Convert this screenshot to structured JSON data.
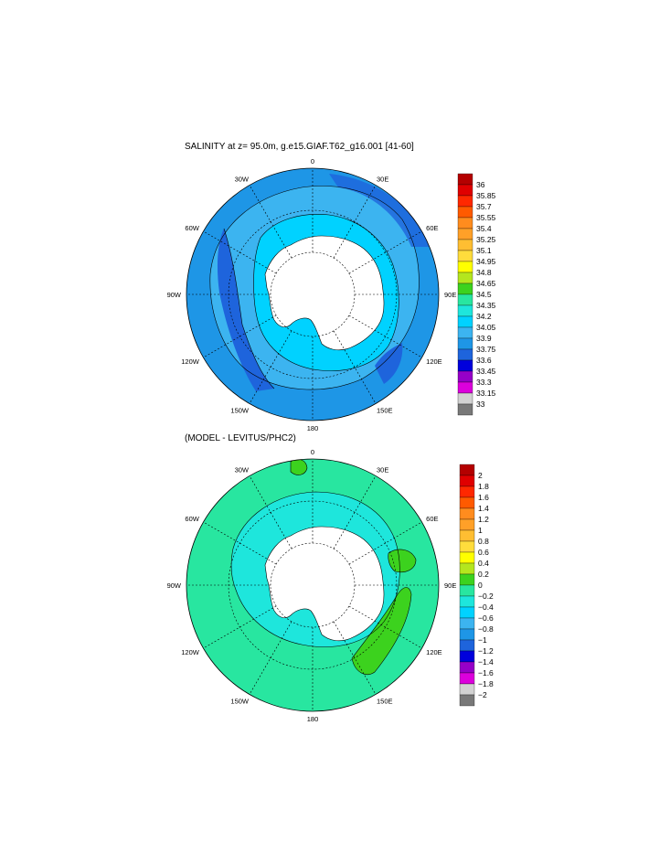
{
  "panels": [
    {
      "title": "SALINITY at z=  95.0m, g.e15.GIAF.T62_g16.001 [41-60]",
      "colorbar": {
        "labels": [
          "36",
          "35.85",
          "35.7",
          "35.55",
          "35.4",
          "35.25",
          "35.1",
          "34.95",
          "34.8",
          "34.65",
          "34.5",
          "34.35",
          "34.2",
          "34.05",
          "33.9",
          "33.75",
          "33.6",
          "33.45",
          "33.3",
          "33.15",
          "33"
        ],
        "colors": [
          "#b40000",
          "#e00000",
          "#ff2800",
          "#ff5a00",
          "#ff8c1e",
          "#ffa028",
          "#ffbe32",
          "#ffdc3c",
          "#ffff00",
          "#b4e61e",
          "#3cd21e",
          "#28e6a0",
          "#1ee6dc",
          "#00d2ff",
          "#3cb4f0",
          "#1e96e6",
          "#1e64dc",
          "#0000dc",
          "#9600c8",
          "#dc00dc",
          "#d2d2d2",
          "#787878"
        ]
      },
      "map_colors": {
        "outer": "#1e96e6",
        "mid": "#3cb4f0",
        "shelf": "#00d2ff",
        "deep": "#1e64dc",
        "land": "#ffffff"
      }
    },
    {
      "title": "(MODEL - LEVITUS/PHC2)",
      "colorbar": {
        "labels": [
          "2",
          "1.8",
          "1.6",
          "1.4",
          "1.2",
          "1",
          "0.8",
          "0.6",
          "0.4",
          "0.2",
          "0",
          "−0.2",
          "−0.4",
          "−0.6",
          "−0.8",
          "−1",
          "−1.2",
          "−1.4",
          "−1.6",
          "−1.8",
          "−2"
        ],
        "colors": [
          "#b40000",
          "#e00000",
          "#ff2800",
          "#ff5a00",
          "#ff8c1e",
          "#ffa028",
          "#ffbe32",
          "#ffdc3c",
          "#ffff00",
          "#b4e61e",
          "#3cd21e",
          "#28e6a0",
          "#1ee6dc",
          "#00d2ff",
          "#3cb4f0",
          "#1e96e6",
          "#1e64dc",
          "#0000dc",
          "#9600c8",
          "#dc00dc",
          "#d2d2d2",
          "#787878"
        ]
      },
      "map_colors": {
        "outer": "#28e6a0",
        "mid": "#1ee6dc",
        "shelf": "#1ee6dc",
        "deep": "#3cd21e",
        "land": "#ffffff"
      }
    }
  ],
  "longitude_labels": [
    "0",
    "30E",
    "60E",
    "90E",
    "120E",
    "150E",
    "180",
    "150W",
    "120W",
    "90W",
    "60W",
    "30W"
  ]
}
